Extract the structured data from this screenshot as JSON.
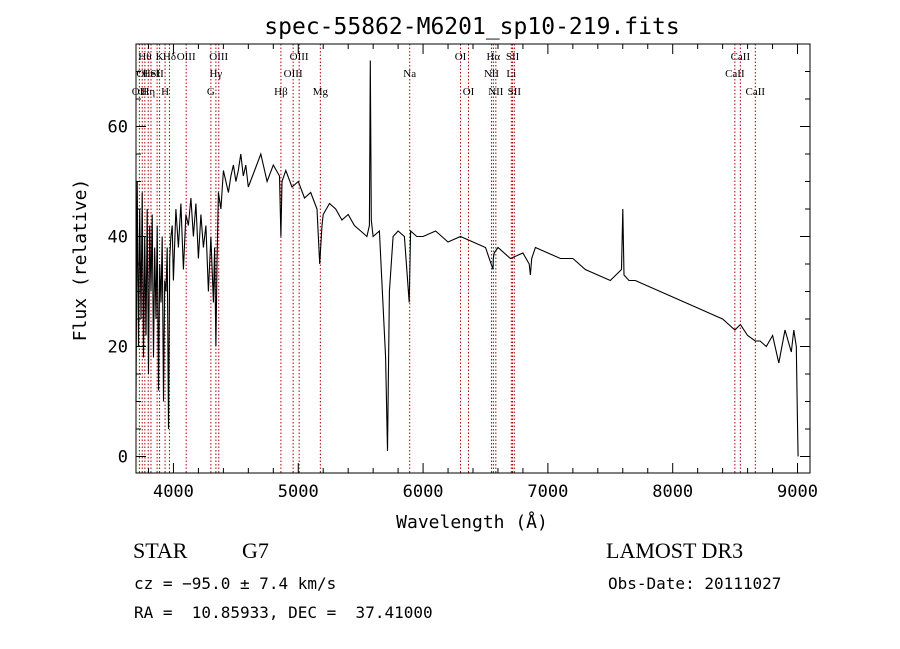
{
  "chart_data": {
    "type": "line",
    "title": "spec-55862-M6201_sp10-219.fits",
    "xlabel": "Wavelength (Å)",
    "ylabel": "Flux (relative)",
    "xlim": [
      3700,
      9100
    ],
    "ylim": [
      -3,
      75
    ],
    "xticks": [
      4000,
      5000,
      6000,
      7000,
      8000,
      9000
    ],
    "yticks": [
      0,
      20,
      40,
      60
    ],
    "x_minor_step": 200,
    "y_minor_step": 5,
    "series": [
      {
        "name": "flux",
        "x": [
          3700,
          3710,
          3720,
          3730,
          3740,
          3750,
          3760,
          3770,
          3780,
          3790,
          3800,
          3810,
          3820,
          3830,
          3840,
          3850,
          3860,
          3870,
          3880,
          3890,
          3900,
          3910,
          3920,
          3930,
          3940,
          3950,
          3960,
          3970,
          3980,
          3990,
          4000,
          4020,
          4040,
          4060,
          4080,
          4100,
          4120,
          4140,
          4160,
          4180,
          4200,
          4220,
          4240,
          4260,
          4280,
          4300,
          4320,
          4330,
          4340,
          4350,
          4360,
          4380,
          4400,
          4420,
          4440,
          4460,
          4480,
          4500,
          4520,
          4540,
          4560,
          4580,
          4600,
          4650,
          4700,
          4750,
          4800,
          4850,
          4861,
          4870,
          4900,
          4950,
          5000,
          5050,
          5100,
          5150,
          5172,
          5190,
          5200,
          5250,
          5300,
          5350,
          5400,
          5450,
          5500,
          5550,
          5570,
          5577,
          5585,
          5600,
          5650,
          5700,
          5715,
          5730,
          5760,
          5800,
          5850,
          5889,
          5900,
          5950,
          6000,
          6100,
          6200,
          6300,
          6400,
          6500,
          6560,
          6563,
          6570,
          6600,
          6700,
          6800,
          6850,
          6860,
          6870,
          6900,
          7000,
          7100,
          7200,
          7300,
          7400,
          7500,
          7590,
          7600,
          7610,
          7650,
          7700,
          7800,
          7900,
          8000,
          8100,
          8200,
          8300,
          8400,
          8498,
          8542,
          8600,
          8662,
          8700,
          8750,
          8800,
          8850,
          8900,
          8950,
          8970,
          8990,
          9000,
          9005
        ],
        "values": [
          10,
          50,
          20,
          45,
          25,
          48,
          18,
          40,
          22,
          45,
          15,
          42,
          30,
          44,
          18,
          38,
          25,
          42,
          12,
          35,
          28,
          40,
          10,
          32,
          30,
          38,
          5,
          36,
          40,
          42,
          32,
          45,
          38,
          46,
          34,
          44,
          42,
          47,
          40,
          46,
          36,
          44,
          38,
          42,
          30,
          40,
          28,
          38,
          20,
          36,
          48,
          45,
          52,
          50,
          48,
          51,
          53,
          50,
          52,
          55,
          51,
          53,
          49,
          52,
          55,
          50,
          53,
          51,
          40,
          50,
          52,
          49,
          50,
          47,
          48,
          45,
          35,
          42,
          44,
          46,
          45,
          43,
          44,
          42,
          41,
          40,
          42,
          72,
          43,
          40,
          41,
          18,
          1,
          30,
          40,
          41,
          40,
          28,
          41,
          40,
          40,
          41,
          39,
          40,
          39,
          38,
          34,
          36,
          37,
          38,
          36,
          37,
          35,
          33,
          36,
          38,
          37,
          36,
          36,
          34,
          33,
          32,
          34,
          45,
          33,
          32,
          32,
          31,
          30,
          29,
          28,
          27,
          26,
          25,
          23,
          24,
          22,
          21,
          21,
          20,
          22,
          17,
          23,
          19,
          23,
          20,
          6,
          0
        ]
      }
    ],
    "line_annotations": [
      {
        "wavelength": 3727,
        "row": 2,
        "label": "OII"
      },
      {
        "wavelength": 3750,
        "row": 1,
        "label": "OI"
      },
      {
        "wavelength": 3771,
        "row": 0,
        "label": "Hθ"
      },
      {
        "wavelength": 3798,
        "row": 2,
        "label": "Hη"
      },
      {
        "wavelength": 3820,
        "row": 1,
        "label": "HeI"
      },
      {
        "wavelength": 3869,
        "row": 1,
        "label": "SII"
      },
      {
        "wavelength": 3889,
        "row": 0,
        "label": "K"
      },
      {
        "wavelength": 3933,
        "row": 2,
        "label": "H"
      },
      {
        "wavelength": 3968,
        "row": 0,
        "label": "Hδ"
      },
      {
        "wavelength": 4102,
        "row": 0,
        "label": "OIII"
      },
      {
        "wavelength": 4300,
        "row": 2,
        "label": "G"
      },
      {
        "wavelength": 4340,
        "row": 1,
        "label": "Hγ"
      },
      {
        "wavelength": 4363,
        "row": 0,
        "label": "OIII"
      },
      {
        "wavelength": 4861,
        "row": 2,
        "label": "Hβ"
      },
      {
        "wavelength": 4959,
        "row": 1,
        "label": "OIII"
      },
      {
        "wavelength": 5007,
        "row": 0,
        "label": "OIII"
      },
      {
        "wavelength": 5177,
        "row": 2,
        "label": "Mg"
      },
      {
        "wavelength": 5893,
        "row": 1,
        "label": "Na"
      },
      {
        "wavelength": 6300,
        "row": 0,
        "label": "OI"
      },
      {
        "wavelength": 6364,
        "row": 2,
        "label": "OI"
      },
      {
        "wavelength": 6548,
        "row": 1,
        "label": "NII"
      },
      {
        "wavelength": 6563,
        "row": 0,
        "label": "Hα"
      },
      {
        "wavelength": 6583,
        "row": 2,
        "label": "NII"
      },
      {
        "wavelength": 6707,
        "row": 1,
        "label": "Li"
      },
      {
        "wavelength": 6717,
        "row": 0,
        "label": "SII"
      },
      {
        "wavelength": 6731,
        "row": 2,
        "label": "SII"
      },
      {
        "wavelength": 8498,
        "row": 1,
        "label": "CaII"
      },
      {
        "wavelength": 8542,
        "row": 0,
        "label": "CaII"
      },
      {
        "wavelength": 8662,
        "row": 2,
        "label": "CaII"
      }
    ],
    "line_color": "#000000",
    "marker_color": "#b00000"
  },
  "info": {
    "class": "STAR",
    "subclass": "G7",
    "survey": "LAMOST DR3",
    "cz": "cz = −95.0 ± 7.4 km/s",
    "obs_date": "Obs-Date: 20111027",
    "coords": "RA =  10.85933, DEC =  37.41000"
  }
}
